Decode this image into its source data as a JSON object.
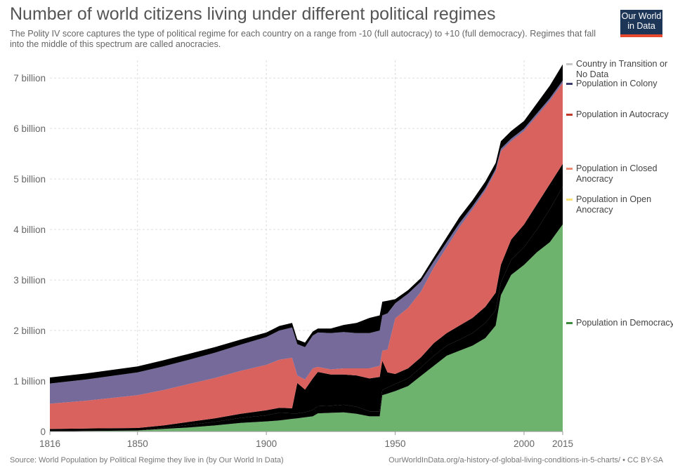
{
  "title": "Number of world citizens living under different political regimes",
  "subtitle": "The Polity IV score captures the type of political regime for each country on a range from -10 (full autocracy) to +10 (full democracy). Regimes that fall into the middle of this spectrum are called anocracies.",
  "logo": {
    "line1": "Our World",
    "line2": "in Data"
  },
  "footer": {
    "source": "Source: World Population by Political Regime they live in (by Our World In Data)",
    "credit": "OurWorldInData.org/a-history-of-global-living-conditions-in-5-charts/ • CC BY-SA"
  },
  "colors": {
    "democracy": "#6db36e",
    "open_anocracy": "#fcefa6",
    "closed_anocracy": "#f3a48b",
    "autocracy": "#d9625e",
    "colony": "#766a9a",
    "no_data": "#d6d6d6",
    "legend_democracy": "#3d8b3d",
    "legend_open": "#f7e27a",
    "legend_closed": "#ee8a73",
    "legend_autocracy": "#c0392b",
    "legend_colony": "#3b3b6d",
    "legend_nodata": "#c8c8c8"
  },
  "chart_data": {
    "type": "area",
    "stacked": true,
    "x": [
      1816,
      1830,
      1850,
      1860,
      1870,
      1880,
      1890,
      1900,
      1905,
      1910,
      1912,
      1915,
      1918,
      1920,
      1925,
      1930,
      1935,
      1940,
      1944,
      1945,
      1947,
      1950,
      1955,
      1960,
      1965,
      1970,
      1975,
      1980,
      1985,
      1989,
      1991,
      1995,
      2000,
      2005,
      2010,
      2015
    ],
    "series": [
      {
        "key": "democracy",
        "name": "Population in Democracy",
        "values": [
          0,
          0.01,
          0.02,
          0.05,
          0.08,
          0.12,
          0.17,
          0.2,
          0.22,
          0.25,
          0.26,
          0.28,
          0.3,
          0.36,
          0.37,
          0.38,
          0.35,
          0.3,
          0.3,
          0.72,
          0.75,
          0.8,
          0.9,
          1.1,
          1.3,
          1.5,
          1.6,
          1.7,
          1.85,
          2.1,
          2.7,
          3.1,
          3.3,
          3.55,
          3.75,
          4.1
        ]
      },
      {
        "key": "open",
        "name": "Population in Open Anocracy",
        "values": [
          0,
          0,
          0,
          0.02,
          0.05,
          0.07,
          0.1,
          0.12,
          0.15,
          0.11,
          0.1,
          0.1,
          0.13,
          0.14,
          0.14,
          0.15,
          0.14,
          0.1,
          0.1,
          0.1,
          0.12,
          0.14,
          0.15,
          0.17,
          0.2,
          0.2,
          0.22,
          0.25,
          0.3,
          0.3,
          0.25,
          0.3,
          0.35,
          0.45,
          0.65,
          0.75
        ]
      },
      {
        "key": "closed",
        "name": "Population in Closed Anocracy",
        "values": [
          0.05,
          0.05,
          0.05,
          0.05,
          0.06,
          0.07,
          0.08,
          0.1,
          0.1,
          0.1,
          0.6,
          0.45,
          0.62,
          0.68,
          0.62,
          0.6,
          0.62,
          0.65,
          0.68,
          0.58,
          0.3,
          0.2,
          0.2,
          0.2,
          0.25,
          0.25,
          0.28,
          0.3,
          0.32,
          0.35,
          0.35,
          0.4,
          0.45,
          0.5,
          0.5,
          0.45
        ]
      },
      {
        "key": "autocracy",
        "name": "Population in Autocracy",
        "values": [
          0.5,
          0.55,
          0.65,
          0.7,
          0.75,
          0.8,
          0.85,
          0.9,
          0.95,
          1.0,
          0.15,
          0.2,
          0.2,
          0.1,
          0.1,
          0.12,
          0.14,
          0.2,
          0.22,
          0.2,
          0.45,
          1.1,
          1.2,
          1.3,
          1.5,
          1.7,
          1.95,
          2.15,
          2.3,
          2.4,
          2.25,
          1.95,
          1.85,
          1.75,
          1.65,
          1.6
        ]
      },
      {
        "key": "colony",
        "name": "Population in Colony",
        "values": [
          0.4,
          0.42,
          0.45,
          0.47,
          0.48,
          0.5,
          0.52,
          0.55,
          0.58,
          0.6,
          0.62,
          0.64,
          0.65,
          0.68,
          0.72,
          0.72,
          0.7,
          0.7,
          0.7,
          0.7,
          0.72,
          0.3,
          0.28,
          0.2,
          0.12,
          0.1,
          0.08,
          0.06,
          0.05,
          0.05,
          0.05,
          0.05,
          0.05,
          0.05,
          0.05,
          0.05
        ]
      },
      {
        "key": "nodata",
        "name": "Country in Transition or No Data",
        "values": [
          0.12,
          0.12,
          0.12,
          0.12,
          0.12,
          0.11,
          0.1,
          0.09,
          0.09,
          0.09,
          0.09,
          0.09,
          0.08,
          0.08,
          0.09,
          0.14,
          0.2,
          0.3,
          0.3,
          0.27,
          0.25,
          0.08,
          0.07,
          0.07,
          0.08,
          0.1,
          0.12,
          0.12,
          0.13,
          0.12,
          0.15,
          0.15,
          0.15,
          0.2,
          0.25,
          0.32
        ]
      }
    ],
    "legend": [
      {
        "key": "nodata",
        "label": "Country in Transition or No Data",
        "value_ref": 7.25
      },
      {
        "key": "colony",
        "label": "Population in Colony",
        "value_ref": 7.0
      },
      {
        "key": "autocracy",
        "label": "Population in Autocracy",
        "value_ref": 6.1
      },
      {
        "key": "closed",
        "label": "Population in Closed Anocracy",
        "value_ref": 5.05
      },
      {
        "key": "open",
        "label": "Population in Open Anocracy",
        "value_ref": 4.43
      },
      {
        "key": "democracy",
        "label": "Population in Democracy",
        "value_ref": 2.05
      }
    ],
    "xlim": [
      1816,
      2015
    ],
    "ylim": [
      0,
      7.35
    ],
    "x_ticks": [
      1816,
      1850,
      1900,
      1950,
      2000,
      2015
    ],
    "y_ticks": [
      {
        "value": 0,
        "label": "0"
      },
      {
        "value": 1,
        "label": "1 billion"
      },
      {
        "value": 2,
        "label": "2 billion"
      },
      {
        "value": 3,
        "label": "3 billion"
      },
      {
        "value": 4,
        "label": "4 billion"
      },
      {
        "value": 5,
        "label": "5 billion"
      },
      {
        "value": 6,
        "label": "6 billion"
      },
      {
        "value": 7,
        "label": "7 billion"
      }
    ],
    "grid": true,
    "legend_placement": "right"
  }
}
